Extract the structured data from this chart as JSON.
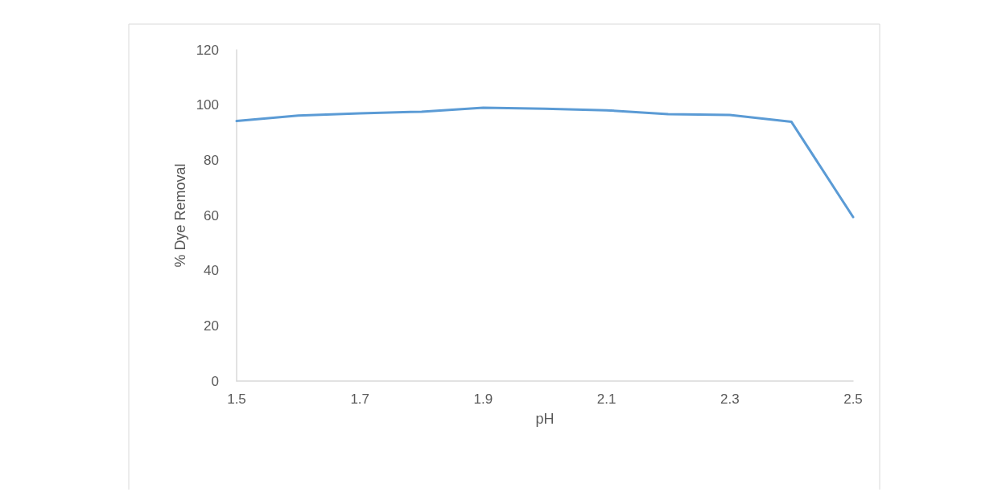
{
  "chart_data": {
    "type": "line",
    "xlabel": "pH",
    "ylabel": "% Dye Removal",
    "x": [
      1.5,
      1.6,
      1.7,
      1.8,
      1.9,
      2.0,
      2.1,
      2.2,
      2.3,
      2.4,
      2.5
    ],
    "series": [
      {
        "color": "#5b9bd5",
        "values": [
          94.2,
          96.2,
          97,
          97.6,
          99,
          98.7,
          98.1,
          96.7,
          96.4,
          93.9,
          59.4
        ]
      }
    ],
    "xlim": [
      1.5,
      2.5
    ],
    "xticks": [
      1.5,
      1.7,
      1.9,
      2.1,
      2.3,
      2.5
    ],
    "ylim": [
      0,
      120
    ],
    "yticks": [
      0,
      20,
      40,
      60,
      80,
      100,
      120
    ],
    "grid": false,
    "marker": "none",
    "line_style": "solid"
  }
}
